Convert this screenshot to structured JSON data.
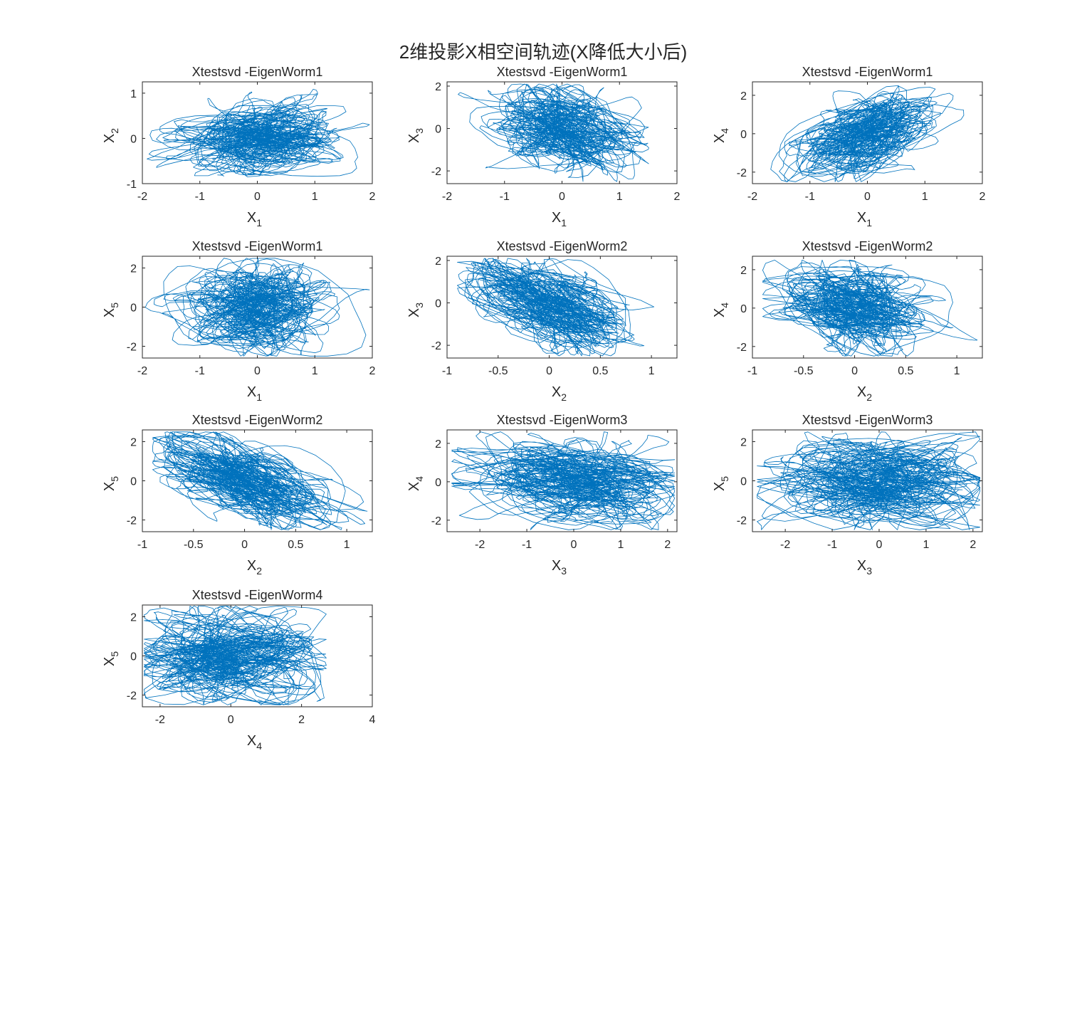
{
  "figure": {
    "suptitle": "2维投影X相空间轨迹(X降低大小后)",
    "line_color": "#0072BD"
  },
  "chart_data": [
    {
      "type": "line",
      "title": "Xtestsvd -EigenWorm1",
      "xlabel": {
        "base": "X",
        "sub": "1"
      },
      "ylabel": {
        "base": "X",
        "sub": "2"
      },
      "xlim": [
        -2,
        2
      ],
      "ylim": [
        -1,
        1.25
      ],
      "xticks": [
        -2,
        -1,
        0,
        1,
        2
      ],
      "yticks": [
        -1,
        0,
        1
      ],
      "trajectory": {
        "cx": 0.0,
        "cy": 0.0,
        "sx": 0.55,
        "sy": 0.35,
        "rho": 0.0,
        "clip_x": [
          -1.95,
          1.95
        ],
        "clip_y": [
          -0.85,
          1.15
        ]
      }
    },
    {
      "type": "line",
      "title": "Xtestsvd -EigenWorm1",
      "xlabel": {
        "base": "X",
        "sub": "1"
      },
      "ylabel": {
        "base": "X",
        "sub": "3"
      },
      "xlim": [
        -2,
        2
      ],
      "ylim": [
        -2.6,
        2.2
      ],
      "xticks": [
        -2,
        -1,
        0,
        1,
        2
      ],
      "yticks": [
        -2,
        0,
        2
      ],
      "trajectory": {
        "cx": 0.0,
        "cy": 0.0,
        "sx": 0.5,
        "sy": 0.9,
        "rho": -0.3,
        "clip_x": [
          -1.95,
          1.9
        ],
        "clip_y": [
          -2.5,
          2.1
        ]
      }
    },
    {
      "type": "line",
      "title": "Xtestsvd -EigenWorm1",
      "xlabel": {
        "base": "X",
        "sub": "1"
      },
      "ylabel": {
        "base": "X",
        "sub": "4"
      },
      "xlim": [
        -2,
        2
      ],
      "ylim": [
        -2.6,
        2.7
      ],
      "xticks": [
        -2,
        -1,
        0,
        1,
        2
      ],
      "yticks": [
        -2,
        0,
        2
      ],
      "trajectory": {
        "cx": 0.0,
        "cy": 0.0,
        "sx": 0.5,
        "sy": 0.95,
        "rho": 0.45,
        "clip_x": [
          -1.95,
          1.9
        ],
        "clip_y": [
          -2.5,
          2.5
        ]
      }
    },
    {
      "type": "line",
      "title": "Xtestsvd -EigenWorm1",
      "xlabel": {
        "base": "X",
        "sub": "1"
      },
      "ylabel": {
        "base": "X",
        "sub": "5"
      },
      "xlim": [
        -2,
        2
      ],
      "ylim": [
        -2.6,
        2.6
      ],
      "xticks": [
        -2,
        -1,
        0,
        1,
        2
      ],
      "yticks": [
        -2,
        0,
        2
      ],
      "trajectory": {
        "cx": 0.0,
        "cy": 0.0,
        "sx": 0.5,
        "sy": 1.0,
        "rho": 0.0,
        "clip_x": [
          -1.95,
          1.95
        ],
        "clip_y": [
          -2.5,
          2.5
        ]
      }
    },
    {
      "type": "line",
      "title": "Xtestsvd -EigenWorm2",
      "xlabel": {
        "base": "X",
        "sub": "2"
      },
      "ylabel": {
        "base": "X",
        "sub": "3"
      },
      "xlim": [
        -1,
        1.25
      ],
      "ylim": [
        -2.6,
        2.2
      ],
      "xticks": [
        -1,
        -0.5,
        0,
        0.5,
        1
      ],
      "yticks": [
        -2,
        0,
        2
      ],
      "trajectory": {
        "cx": 0.0,
        "cy": 0.0,
        "sx": 0.33,
        "sy": 0.9,
        "rho": -0.6,
        "clip_x": [
          -0.9,
          1.2
        ],
        "clip_y": [
          -2.5,
          2.1
        ]
      }
    },
    {
      "type": "line",
      "title": "Xtestsvd -EigenWorm2",
      "xlabel": {
        "base": "X",
        "sub": "2"
      },
      "ylabel": {
        "base": "X",
        "sub": "4"
      },
      "xlim": [
        -1,
        1.25
      ],
      "ylim": [
        -2.6,
        2.7
      ],
      "xticks": [
        -1,
        -0.5,
        0,
        0.5,
        1
      ],
      "yticks": [
        -2,
        0,
        2
      ],
      "trajectory": {
        "cx": 0.0,
        "cy": 0.0,
        "sx": 0.33,
        "sy": 0.95,
        "rho": -0.2,
        "clip_x": [
          -0.9,
          1.2
        ],
        "clip_y": [
          -2.5,
          2.5
        ]
      }
    },
    {
      "type": "line",
      "title": "Xtestsvd -EigenWorm2",
      "xlabel": {
        "base": "X",
        "sub": "2"
      },
      "ylabel": {
        "base": "X",
        "sub": "5"
      },
      "xlim": [
        -1,
        1.25
      ],
      "ylim": [
        -2.6,
        2.6
      ],
      "xticks": [
        -1,
        -0.5,
        0,
        0.5,
        1
      ],
      "yticks": [
        -2,
        0,
        2
      ],
      "trajectory": {
        "cx": 0.0,
        "cy": 0.0,
        "sx": 0.33,
        "sy": 1.0,
        "rho": -0.6,
        "clip_x": [
          -0.9,
          1.2
        ],
        "clip_y": [
          -2.5,
          2.5
        ]
      }
    },
    {
      "type": "line",
      "title": "Xtestsvd -EigenWorm3",
      "xlabel": {
        "base": "X",
        "sub": "3"
      },
      "ylabel": {
        "base": "X",
        "sub": "4"
      },
      "xlim": [
        -2.7,
        2.2
      ],
      "ylim": [
        -2.6,
        2.7
      ],
      "xticks": [
        -2,
        -1,
        0,
        1,
        2
      ],
      "yticks": [
        -2,
        0,
        2
      ],
      "trajectory": {
        "cx": 0.0,
        "cy": 0.0,
        "sx": 0.9,
        "sy": 0.95,
        "rho": -0.15,
        "clip_x": [
          -2.6,
          2.15
        ],
        "clip_y": [
          -2.5,
          2.6
        ]
      }
    },
    {
      "type": "line",
      "title": "Xtestsvd -EigenWorm3",
      "xlabel": {
        "base": "X",
        "sub": "3"
      },
      "ylabel": {
        "base": "X",
        "sub": "5"
      },
      "xlim": [
        -2.7,
        2.2
      ],
      "ylim": [
        -2.6,
        2.6
      ],
      "xticks": [
        -2,
        -1,
        0,
        1,
        2
      ],
      "yticks": [
        -2,
        0,
        2
      ],
      "trajectory": {
        "cx": 0.0,
        "cy": 0.0,
        "sx": 0.9,
        "sy": 1.0,
        "rho": 0.0,
        "clip_x": [
          -2.6,
          2.15
        ],
        "clip_y": [
          -2.5,
          2.5
        ]
      }
    },
    {
      "type": "line",
      "title": "Xtestsvd -EigenWorm4",
      "xlabel": {
        "base": "X",
        "sub": "4"
      },
      "ylabel": {
        "base": "X",
        "sub": "5"
      },
      "xlim": [
        -2.5,
        4
      ],
      "ylim": [
        -2.6,
        2.6
      ],
      "xticks": [
        -2,
        0,
        2,
        4
      ],
      "yticks": [
        -2,
        0,
        2
      ],
      "trajectory": {
        "cx": 0.0,
        "cy": 0.0,
        "sx": 1.1,
        "sy": 1.0,
        "rho": 0.0,
        "clip_x": [
          -2.45,
          2.7
        ],
        "clip_y": [
          -2.5,
          2.55
        ]
      }
    }
  ]
}
